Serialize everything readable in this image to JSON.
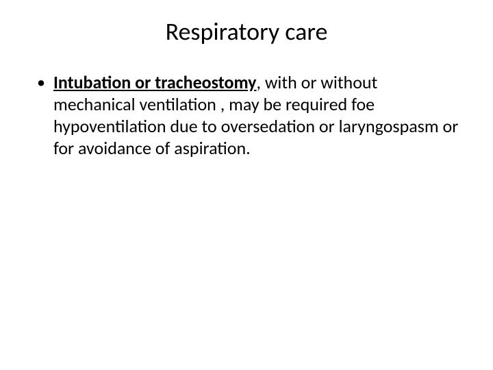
{
  "slide": {
    "title": "Respiratory care",
    "title_fontsize": 36,
    "title_color": "#000000",
    "body_fontsize": 26,
    "body_color": "#000000",
    "background_color": "#ffffff",
    "bullets": [
      {
        "marker": "•",
        "emphasized": "Intubation or tracheostomy",
        "rest": ",  with or without mechanical ventilation , may be required foe hypoventilation due to oversedation or laryngospasm or for avoidance of aspiration."
      }
    ]
  }
}
